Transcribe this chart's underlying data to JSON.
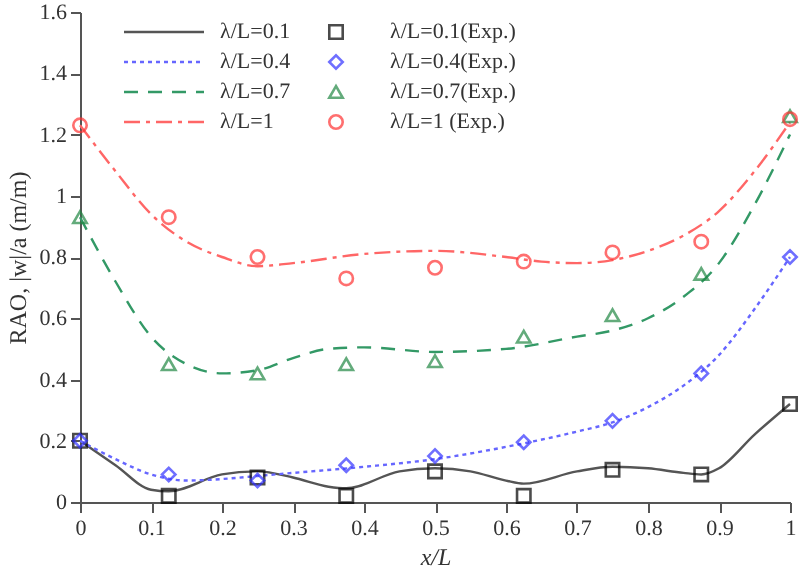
{
  "chart_data": {
    "type": "line",
    "xlabel": "x/L",
    "ylabel": "RAO, |w|/a (m/m)",
    "xlim": [
      0,
      1
    ],
    "xticks": [
      0,
      0.1,
      0.2,
      0.3,
      0.4,
      0.5,
      0.6,
      0.7,
      0.8,
      0.9,
      1
    ],
    "ylim": [
      0,
      1.6
    ],
    "yticks": [
      0,
      0.2,
      0.4,
      0.6,
      0.8,
      1,
      1.2,
      1.4,
      1.6
    ],
    "grid": false,
    "legend": "top",
    "series": [
      {
        "name": "λ/L=0.1",
        "type": "line",
        "color": "#555555",
        "line_style": "solid",
        "marker": "none",
        "x": [
          0,
          0.05,
          0.1,
          0.125,
          0.2,
          0.25,
          0.3,
          0.35,
          0.375,
          0.45,
          0.5,
          0.55,
          0.6,
          0.625,
          0.7,
          0.75,
          0.8,
          0.85,
          0.875,
          0.9,
          0.95,
          1
        ],
        "values": [
          0.2,
          0.12,
          0.04,
          0.035,
          0.09,
          0.1,
          0.08,
          0.05,
          0.045,
          0.1,
          0.11,
          0.1,
          0.07,
          0.06,
          0.1,
          0.115,
          0.11,
          0.095,
          0.09,
          0.11,
          0.22,
          0.32
        ]
      },
      {
        "name": "λ/L=0.4",
        "type": "line",
        "color": "#6666ff",
        "line_style": "dotted",
        "marker": "none",
        "x": [
          0,
          0.05,
          0.1,
          0.15,
          0.2,
          0.25,
          0.3,
          0.4,
          0.5,
          0.6,
          0.7,
          0.75,
          0.8,
          0.85,
          0.9,
          0.95,
          1
        ],
        "values": [
          0.2,
          0.14,
          0.09,
          0.07,
          0.075,
          0.085,
          0.095,
          0.115,
          0.14,
          0.18,
          0.23,
          0.26,
          0.31,
          0.38,
          0.48,
          0.63,
          0.8
        ]
      },
      {
        "name": "λ/L=0.7",
        "type": "line",
        "color": "#339966",
        "line_style": "dashed",
        "marker": "none",
        "x": [
          0,
          0.05,
          0.1,
          0.15,
          0.2,
          0.25,
          0.3,
          0.35,
          0.4,
          0.5,
          0.6,
          0.7,
          0.75,
          0.8,
          0.85,
          0.9,
          0.95,
          1
        ],
        "values": [
          0.93,
          0.72,
          0.54,
          0.45,
          0.42,
          0.43,
          0.47,
          0.5,
          0.505,
          0.49,
          0.5,
          0.54,
          0.56,
          0.6,
          0.67,
          0.78,
          0.97,
          1.2
        ]
      },
      {
        "name": "λ/L=1",
        "type": "line",
        "color": "#ff6666",
        "line_style": "dashdot",
        "marker": "none",
        "x": [
          0,
          0.05,
          0.1,
          0.15,
          0.2,
          0.25,
          0.3,
          0.4,
          0.5,
          0.6,
          0.65,
          0.7,
          0.75,
          0.8,
          0.85,
          0.9,
          0.95,
          1
        ],
        "values": [
          1.23,
          1.08,
          0.94,
          0.85,
          0.8,
          0.77,
          0.78,
          0.81,
          0.82,
          0.8,
          0.785,
          0.78,
          0.79,
          0.82,
          0.87,
          0.95,
          1.08,
          1.24
        ]
      },
      {
        "name": "λ/L=0.1(Exp.)",
        "type": "scatter",
        "color": "#000000",
        "marker": "square",
        "x": [
          0,
          0.125,
          0.25,
          0.375,
          0.5,
          0.625,
          0.75,
          0.875,
          1
        ],
        "values": [
          0.2,
          0.02,
          0.08,
          0.02,
          0.1,
          0.02,
          0.105,
          0.09,
          0.32
        ]
      },
      {
        "name": "λ/L=0.4(Exp.)",
        "type": "scatter",
        "color": "#3333ff",
        "marker": "diamond",
        "x": [
          0,
          0.125,
          0.25,
          0.375,
          0.5,
          0.625,
          0.75,
          0.875,
          1
        ],
        "values": [
          0.2,
          0.09,
          0.07,
          0.12,
          0.15,
          0.195,
          0.265,
          0.42,
          0.8
        ]
      },
      {
        "name": "λ/L=0.7(Exp.)",
        "type": "scatter",
        "color": "#228844",
        "marker": "triangle",
        "x": [
          0,
          0.125,
          0.25,
          0.375,
          0.5,
          0.625,
          0.75,
          0.875,
          1
        ],
        "values": [
          0.93,
          0.45,
          0.42,
          0.45,
          0.46,
          0.54,
          0.61,
          0.745,
          1.26
        ]
      },
      {
        "name": "λ/L=1   (Exp.)",
        "type": "scatter",
        "color": "#ff3333",
        "marker": "circle",
        "x": [
          0,
          0.125,
          0.25,
          0.375,
          0.5,
          0.625,
          0.75,
          0.875,
          1
        ],
        "values": [
          1.23,
          0.93,
          0.8,
          0.73,
          0.765,
          0.785,
          0.815,
          0.85,
          1.25
        ]
      }
    ]
  }
}
